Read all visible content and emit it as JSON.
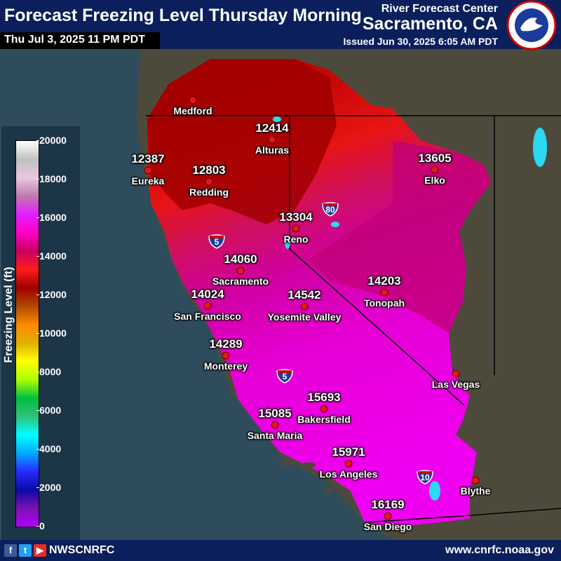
{
  "header": {
    "title": "Forecast Freezing Level Thursday Morning",
    "valid_time": "Thu Jul 3, 2025 11 PM PDT",
    "agency_line1": "River Forecast Center",
    "agency_line2": "Sacramento, CA",
    "issued": "Issued Jun 30, 2025 6:05 AM PDT"
  },
  "legend": {
    "title": "Freezing Level (ft)",
    "ticks": [
      "20000",
      "18000",
      "16000",
      "14000",
      "12000",
      "10000",
      "8000",
      "6000",
      "4000",
      "2000",
      "0"
    ],
    "colors": [
      "#b400ff",
      "#7a12b0",
      "#0a0aa8",
      "#2a2aff",
      "#00aaff",
      "#00ffff",
      "#2ec27a",
      "#00c040",
      "#aaff00",
      "#ffff00",
      "#e0b000",
      "#ff8800",
      "#b04a00",
      "#a00000",
      "#ff1c1c",
      "#c80060",
      "#ff00c8",
      "#e020ff",
      "#c07ab0",
      "#e8c8e0",
      "#c0c0c0",
      "#ffffff"
    ]
  },
  "cities": [
    {
      "name": "Medford",
      "value": ""
    },
    {
      "name": "Alturas",
      "value": "12414"
    },
    {
      "name": "Eureka",
      "value": "12387"
    },
    {
      "name": "Redding",
      "value": "12803"
    },
    {
      "name": "Elko",
      "value": "13605"
    },
    {
      "name": "Reno",
      "value": "13304"
    },
    {
      "name": "Sacramento",
      "value": "14060"
    },
    {
      "name": "San Francisco",
      "value": "14024"
    },
    {
      "name": "Tonopah",
      "value": "14203"
    },
    {
      "name": "Yosemite Valley",
      "value": "14542"
    },
    {
      "name": "Monterey",
      "value": "14289"
    },
    {
      "name": "Las Vegas",
      "value": ""
    },
    {
      "name": "Bakersfield",
      "value": "15693"
    },
    {
      "name": "Santa Maria",
      "value": "15085"
    },
    {
      "name": "Los Angeles",
      "value": "15971"
    },
    {
      "name": "Blythe",
      "value": ""
    },
    {
      "name": "San Diego",
      "value": "16169"
    }
  ],
  "interstates": [
    "5",
    "80",
    "5",
    "10"
  ],
  "footer": {
    "handle": "NWSCNRFC",
    "website": "www.cnrfc.noaa.gov"
  }
}
